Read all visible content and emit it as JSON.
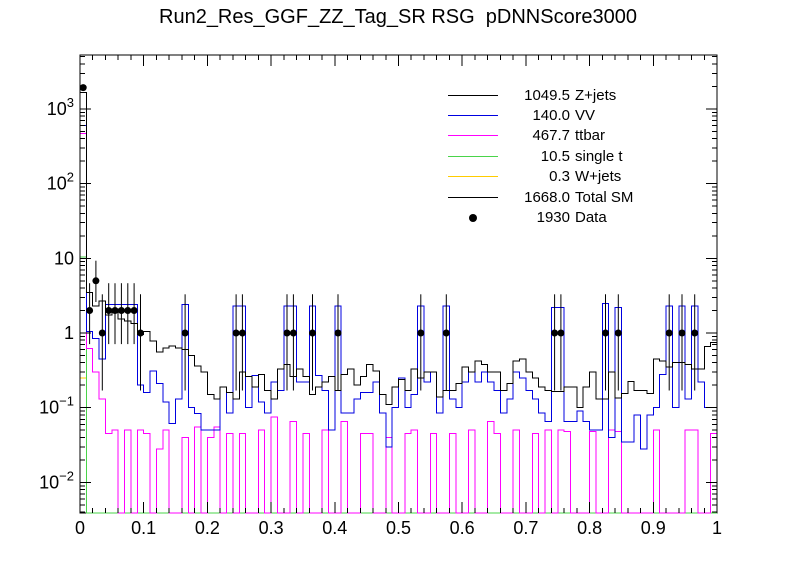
{
  "chart": {
    "title": "Run2_Res_GGF_ZZ_Tag_SR RSG  pDNNScore3000"
  },
  "chart_data": {
    "type": "histogram-overlay",
    "title": "Run2_Res_GGF_ZZ_Tag_SR RSG  pDNNScore3000",
    "x_axis": {
      "min": 0,
      "max": 1,
      "tick_labels": [
        "0",
        "0.1",
        "0.2",
        "0.3",
        "0.4",
        "0.5",
        "0.6",
        "0.7",
        "0.8",
        "0.9",
        "1"
      ],
      "minor_tick_step": 0.02
    },
    "y_axis": {
      "scale": "log",
      "min": 0.0039,
      "max": 5200,
      "tick_labels": [
        "10^3",
        "10^2",
        "10",
        "1",
        "10^-1",
        "10^-2"
      ],
      "tick_exponents": [
        3,
        2,
        1,
        0,
        -1,
        -2
      ]
    },
    "bins": {
      "count": 100,
      "xmin": 0,
      "xmax": 1
    },
    "legend_position": "top-right",
    "series": [
      {
        "name": "Z+jets",
        "legend_value": "1049.5",
        "color": "#000000",
        "values": [
          1668,
          3.5,
          2.3,
          2.7,
          1.75,
          2.1,
          1.55,
          1.45,
          1.35,
          0.95,
          1.05,
          0.78,
          0.56,
          0.63,
          0.67,
          0.63,
          0.6,
          0.5,
          0.36,
          0.3,
          0.15,
          0.13,
          0.19,
          0.16,
          0.13,
          0.3,
          0.26,
          0.19,
          0.28,
          0.17,
          0.13,
          0.33,
          0.38,
          0.26,
          0.33,
          0.26,
          0.15,
          0.19,
          0.22,
          0.26,
          0.17,
          0.28,
          0.33,
          0.2,
          0.26,
          0.38,
          0.31,
          0.15,
          0.11,
          0.19,
          0.24,
          0.17,
          0.33,
          0.25,
          0.3,
          0.3,
          0.14,
          0.17,
          0.17,
          0.21,
          0.35,
          0.3,
          0.42,
          0.38,
          0.3,
          0.3,
          0.17,
          0.21,
          0.42,
          0.45,
          0.3,
          0.25,
          0.19,
          0.17,
          0.165,
          0.165,
          0.19,
          0.19,
          0.1,
          0.19,
          0.3,
          0.13,
          0.13,
          0.3,
          0.135,
          0.155,
          0.225,
          0.17,
          0.17,
          0.155,
          0.45,
          0.42,
          0.35,
          0.4,
          0.4,
          0.38,
          0.33,
          0.33,
          0.66,
          0.75
        ]
      },
      {
        "name": "VV",
        "legend_value": "140.0",
        "color": "#0000e0",
        "values": [
          600,
          1.05,
          0.85,
          0.45,
          2.4,
          2.4,
          2.4,
          2.4,
          2.4,
          0.2,
          0.16,
          0.31,
          0.21,
          0.12,
          0.061,
          0.13,
          2.4,
          0.1,
          0.083,
          0.05,
          0.05,
          0.05,
          0.19,
          0.085,
          2.3,
          2.3,
          0.1,
          0.27,
          0.12,
          0.085,
          0.22,
          0.17,
          2.3,
          2.3,
          0.22,
          0.22,
          2.3,
          0.27,
          0.17,
          0.05,
          2.3,
          0.085,
          0.085,
          0.13,
          0.16,
          0.16,
          0.22,
          0.085,
          0.03,
          0.1,
          0.25,
          0.1,
          0.15,
          2.3,
          0.22,
          0.3,
          0.085,
          2.3,
          0.13,
          0.1,
          0.22,
          0.3,
          0.22,
          0.3,
          0.22,
          0.17,
          0.085,
          0.13,
          0.3,
          0.25,
          0.17,
          0.13,
          0.085,
          0.065,
          2.2,
          2.2,
          0.065,
          0.065,
          0.09,
          0.065,
          0.05,
          0.05,
          2.5,
          0.04,
          2.2,
          0.035,
          0.035,
          0.08,
          0.028,
          0.08,
          0.1,
          0.28,
          2.3,
          0.1,
          2.3,
          0.13,
          2.3,
          0.22,
          0.1,
          0.1
        ]
      },
      {
        "name": "ttbar",
        "legend_value": "467.7",
        "color": "#ff00ff",
        "values": [
          470,
          0.62,
          0.3,
          0.13,
          0.045,
          0.05,
          0,
          0.05,
          0,
          0.05,
          0.045,
          0,
          0.028,
          0.05,
          0,
          0,
          0.04,
          0,
          0.055,
          0,
          0.04,
          0.055,
          0,
          0.045,
          0,
          0.045,
          0,
          0,
          0.05,
          0,
          0.075,
          0,
          0,
          0.065,
          0,
          0.045,
          0,
          0,
          0.05,
          0,
          0,
          0.065,
          0,
          0,
          0.045,
          0.045,
          0,
          0,
          0.04,
          0,
          0,
          0.045,
          0.05,
          0,
          0,
          0.045,
          0,
          0,
          0.045,
          0,
          0,
          0.05,
          0,
          0,
          0.065,
          0.045,
          0,
          0,
          0.05,
          0,
          0,
          0.045,
          0,
          0.05,
          0,
          0.05,
          0.048,
          0,
          0,
          0,
          0.048,
          0,
          0,
          0.05,
          0.048,
          0,
          0,
          0,
          0,
          0,
          0.05,
          0,
          0,
          0,
          0,
          0.05,
          0.05,
          0,
          0,
          0.045
        ]
      },
      {
        "name": "single t",
        "legend_value": "10.5",
        "color": "#4ad44a",
        "values": [
          10.4,
          0,
          0,
          0,
          0,
          0,
          0,
          0,
          0,
          0,
          0,
          0,
          0,
          0,
          0,
          0,
          0,
          0,
          0,
          0,
          0,
          0,
          0,
          0,
          0,
          0,
          0,
          0,
          0,
          0,
          0,
          0,
          0,
          0,
          0,
          0,
          0,
          0,
          0,
          0,
          0,
          0,
          0,
          0,
          0,
          0,
          0,
          0,
          0,
          0,
          0,
          0,
          0,
          0,
          0,
          0,
          0,
          0,
          0,
          0,
          0,
          0,
          0,
          0,
          0,
          0,
          0,
          0,
          0,
          0,
          0,
          0,
          0,
          0,
          0,
          0,
          0,
          0,
          0,
          0,
          0,
          0,
          0,
          0,
          0,
          0,
          0,
          0,
          0,
          0,
          0,
          0,
          0,
          0,
          0,
          0,
          0,
          0,
          0,
          0
        ]
      },
      {
        "name": "W+jets",
        "legend_value": "0.3",
        "color": "#ffcc00",
        "values": [
          0.25,
          0,
          0,
          0,
          0,
          0,
          0,
          0,
          0,
          0,
          0,
          0,
          0,
          0,
          0,
          0,
          0,
          0,
          0,
          0,
          0,
          0,
          0,
          0,
          0,
          0,
          0,
          0,
          0,
          0,
          0,
          0,
          0,
          0,
          0,
          0,
          0,
          0,
          0,
          0,
          0,
          0,
          0,
          0,
          0,
          0,
          0,
          0,
          0,
          0,
          0,
          0,
          0,
          0,
          0,
          0,
          0,
          0,
          0,
          0,
          0,
          0,
          0,
          0,
          0,
          0,
          0,
          0,
          0,
          0,
          0,
          0,
          0,
          0,
          0,
          0,
          0,
          0,
          0,
          0,
          0,
          0,
          0,
          0,
          0,
          0,
          0,
          0,
          0,
          0,
          0,
          0,
          0,
          0,
          0,
          0,
          0,
          0,
          0,
          0
        ]
      },
      {
        "name": "Total SM",
        "legend_value": "1668.0",
        "color": "#000000",
        "values": [
          1668,
          3.5,
          2.3,
          2.7,
          1.75,
          2.1,
          1.55,
          1.45,
          1.35,
          0.95,
          1.05,
          0.78,
          0.56,
          0.63,
          0.67,
          0.63,
          0.6,
          0.5,
          0.36,
          0.3,
          0.15,
          0.13,
          0.19,
          0.16,
          0.13,
          0.3,
          0.26,
          0.19,
          0.28,
          0.17,
          0.13,
          0.33,
          0.38,
          0.26,
          0.33,
          0.26,
          0.15,
          0.19,
          0.22,
          0.26,
          0.17,
          0.28,
          0.33,
          0.2,
          0.26,
          0.38,
          0.31,
          0.15,
          0.11,
          0.19,
          0.24,
          0.17,
          0.33,
          0.25,
          0.3,
          0.3,
          0.14,
          0.17,
          0.17,
          0.21,
          0.35,
          0.3,
          0.42,
          0.38,
          0.3,
          0.3,
          0.17,
          0.21,
          0.42,
          0.45,
          0.3,
          0.25,
          0.19,
          0.17,
          0.165,
          0.165,
          0.19,
          0.19,
          0.1,
          0.19,
          0.3,
          0.13,
          0.13,
          0.3,
          0.135,
          0.155,
          0.225,
          0.17,
          0.17,
          0.155,
          0.45,
          0.42,
          0.35,
          0.4,
          0.4,
          0.38,
          0.33,
          0.33,
          0.66,
          0.75
        ]
      }
    ],
    "data_points": {
      "name": "Data",
      "legend_value": "1930",
      "color": "#000000",
      "points": [
        {
          "x": 0.005,
          "y": 1930,
          "lo": 1850,
          "hi": 2010
        },
        {
          "x": 0.015,
          "y": 2,
          "lo": 0.71,
          "hi": 4.64
        },
        {
          "x": 0.025,
          "y": 5,
          "lo": 2.6,
          "hi": 9.3
        },
        {
          "x": 0.035,
          "y": 1,
          "lo": 0.17,
          "hi": 3.3
        },
        {
          "x": 0.045,
          "y": 2,
          "lo": 0.71,
          "hi": 4.64
        },
        {
          "x": 0.055,
          "y": 2,
          "lo": 0.71,
          "hi": 4.64
        },
        {
          "x": 0.065,
          "y": 2,
          "lo": 0.71,
          "hi": 4.64
        },
        {
          "x": 0.075,
          "y": 2,
          "lo": 0.71,
          "hi": 4.64
        },
        {
          "x": 0.085,
          "y": 2,
          "lo": 0.71,
          "hi": 4.64
        },
        {
          "x": 0.095,
          "y": 1,
          "lo": 0.17,
          "hi": 3.3
        },
        {
          "x": 0.165,
          "y": 1,
          "lo": 0.17,
          "hi": 3.3
        },
        {
          "x": 0.245,
          "y": 1,
          "lo": 0.17,
          "hi": 3.3
        },
        {
          "x": 0.255,
          "y": 1,
          "lo": 0.17,
          "hi": 3.3
        },
        {
          "x": 0.325,
          "y": 1,
          "lo": 0.17,
          "hi": 3.3
        },
        {
          "x": 0.335,
          "y": 1,
          "lo": 0.17,
          "hi": 3.3
        },
        {
          "x": 0.365,
          "y": 1,
          "lo": 0.17,
          "hi": 3.3
        },
        {
          "x": 0.405,
          "y": 1,
          "lo": 0.17,
          "hi": 3.3
        },
        {
          "x": 0.535,
          "y": 1,
          "lo": 0.17,
          "hi": 3.3
        },
        {
          "x": 0.575,
          "y": 1,
          "lo": 0.17,
          "hi": 3.3
        },
        {
          "x": 0.745,
          "y": 1,
          "lo": 0.17,
          "hi": 3.3
        },
        {
          "x": 0.755,
          "y": 1,
          "lo": 0.17,
          "hi": 3.3
        },
        {
          "x": 0.825,
          "y": 1,
          "lo": 0.17,
          "hi": 3.3
        },
        {
          "x": 0.845,
          "y": 1,
          "lo": 0.17,
          "hi": 3.3
        },
        {
          "x": 0.925,
          "y": 1,
          "lo": 0.17,
          "hi": 3.3
        },
        {
          "x": 0.945,
          "y": 1,
          "lo": 0.17,
          "hi": 3.3
        },
        {
          "x": 0.965,
          "y": 1,
          "lo": 0.17,
          "hi": 3.3
        }
      ]
    },
    "legend": [
      {
        "value": "1049.5",
        "label": "Z+jets",
        "color": "#000000",
        "marker": "line"
      },
      {
        "value": "140.0",
        "label": "VV",
        "color": "#0000e0",
        "marker": "line"
      },
      {
        "value": "467.7",
        "label": "ttbar",
        "color": "#ff00ff",
        "marker": "line"
      },
      {
        "value": "10.5",
        "label": "single t",
        "color": "#4ad44a",
        "marker": "line"
      },
      {
        "value": "0.3",
        "label": "W+jets",
        "color": "#ffcc00",
        "marker": "line"
      },
      {
        "value": "1668.0",
        "label": "Total SM",
        "color": "#000000",
        "marker": "line"
      },
      {
        "value": "1930",
        "label": "Data",
        "color": "#000000",
        "marker": "dot"
      }
    ]
  }
}
